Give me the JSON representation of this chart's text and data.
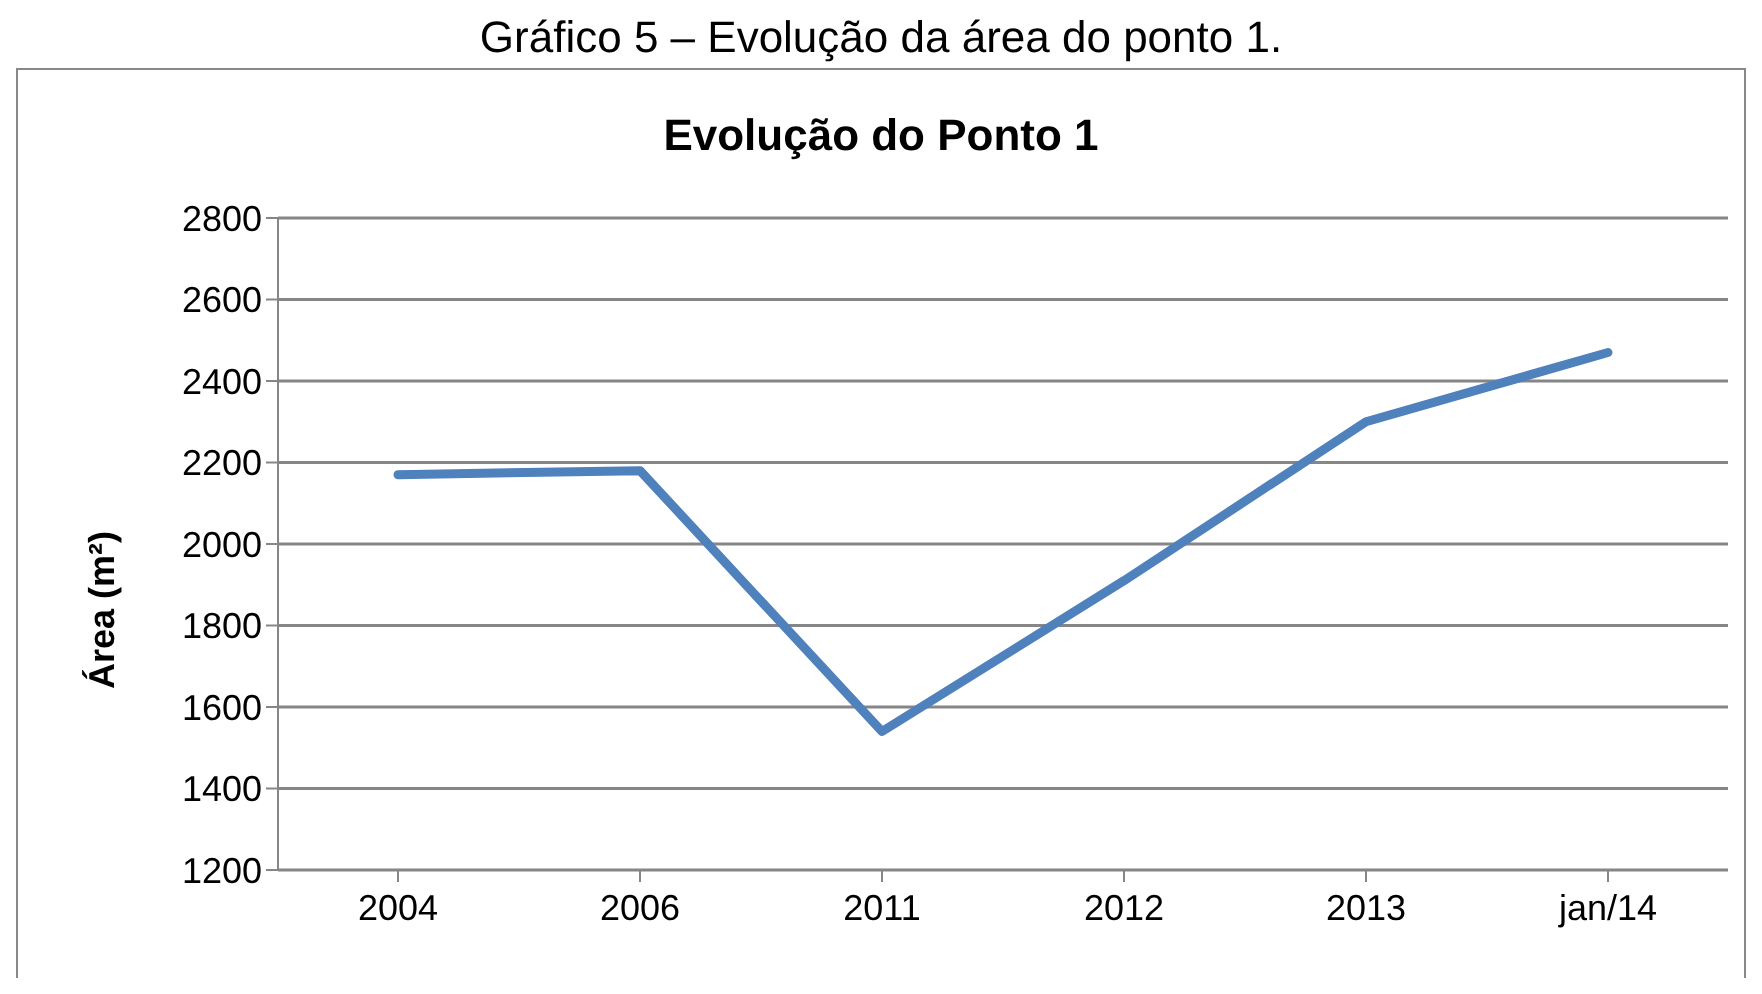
{
  "chart_data": {
    "type": "line",
    "title": "Evolução do Ponto 1",
    "ylabel": "Área (m²)",
    "annotations": [
      "Gráfico 5 – Evolução da área do ponto 1."
    ],
    "categories": [
      "2004",
      "2006",
      "2011",
      "2012",
      "2013",
      "jan/14"
    ],
    "series": [
      {
        "color": "#4f81bd",
        "values": [
          2170,
          2180,
          1540,
          1910,
          2300,
          2470
        ]
      }
    ],
    "ylim": [
      1200,
      2800
    ],
    "yticks": [
      1200,
      1400,
      1600,
      1800,
      2000,
      2200,
      2400,
      2600,
      2800
    ],
    "grid": "y",
    "legend": false,
    "marker": "none",
    "line_style": "solid"
  }
}
